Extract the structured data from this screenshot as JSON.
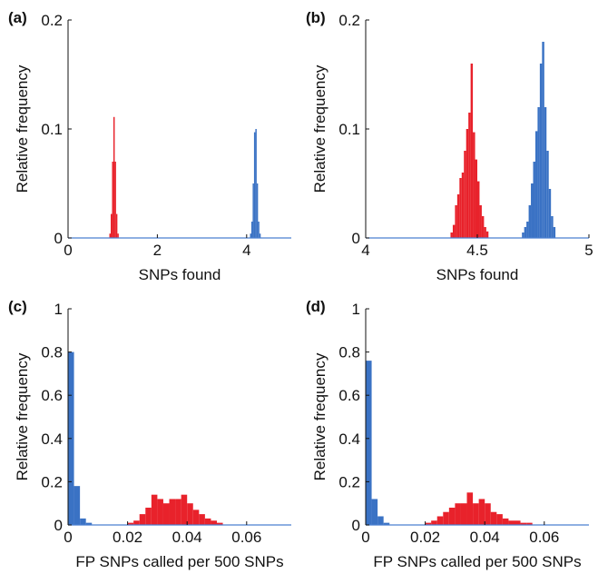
{
  "chart_data": [
    {
      "type": "bar",
      "panel_label": "(a)",
      "xlabel": "SNPs found",
      "ylabel": "Relative frequency",
      "xlim": [
        0,
        5
      ],
      "ylim": [
        0,
        0.2
      ],
      "xticks": [
        0,
        2,
        4
      ],
      "yticks": [
        0,
        0.1,
        0.2
      ],
      "xtick_labels": [
        "0",
        "2",
        "4"
      ],
      "ytick_labels": [
        "0",
        "0.1",
        "0.2"
      ],
      "bin_width": 0.03,
      "series": [
        {
          "color": "#e8222b",
          "x": [
            0.94,
            0.97,
            1.0,
            1.03,
            1.06,
            1.09,
            1.12
          ],
          "values": [
            0.004,
            0.022,
            0.07,
            0.111,
            0.07,
            0.022,
            0.004
          ]
        },
        {
          "color": "#3a72c4",
          "x": [
            4.09,
            4.12,
            4.15,
            4.18,
            4.21,
            4.24,
            4.27,
            4.3
          ],
          "values": [
            0.004,
            0.015,
            0.05,
            0.097,
            0.1,
            0.05,
            0.015,
            0.004
          ]
        }
      ]
    },
    {
      "type": "bar",
      "panel_label": "(b)",
      "xlabel": "SNPs found",
      "ylabel": "Relative frequency",
      "xlim": [
        4,
        5
      ],
      "ylim": [
        0,
        0.2
      ],
      "xticks": [
        4,
        4.5,
        5
      ],
      "yticks": [
        0,
        0.1,
        0.2
      ],
      "xtick_labels": [
        "4",
        "4.5",
        "5"
      ],
      "ytick_labels": [
        "0",
        "0.1",
        "0.2"
      ],
      "bin_width": 0.01,
      "series": [
        {
          "color": "#e8222b",
          "x": [
            4.385,
            4.395,
            4.405,
            4.415,
            4.425,
            4.435,
            4.445,
            4.455,
            4.465,
            4.475,
            4.485,
            4.495,
            4.505,
            4.515,
            4.525,
            4.535,
            4.545
          ],
          "values": [
            0.005,
            0.012,
            0.03,
            0.04,
            0.055,
            0.06,
            0.08,
            0.1,
            0.115,
            0.16,
            0.097,
            0.072,
            0.052,
            0.03,
            0.02,
            0.01,
            0.006
          ]
        },
        {
          "color": "#3a72c4",
          "x": [
            4.705,
            4.715,
            4.725,
            4.735,
            4.745,
            4.755,
            4.765,
            4.775,
            4.785,
            4.795,
            4.805,
            4.815,
            4.825,
            4.835,
            4.845
          ],
          "values": [
            0.005,
            0.01,
            0.015,
            0.03,
            0.05,
            0.07,
            0.098,
            0.12,
            0.16,
            0.18,
            0.12,
            0.08,
            0.045,
            0.02,
            0.01
          ]
        }
      ]
    },
    {
      "type": "bar",
      "panel_label": "(c)",
      "xlabel": "FP SNPs called per 500 SNPs",
      "ylabel": "Relative frequency",
      "xlim": [
        0,
        0.075
      ],
      "ylim": [
        0,
        1
      ],
      "xticks": [
        0,
        0.02,
        0.04,
        0.06
      ],
      "yticks": [
        0,
        0.2,
        0.4,
        0.6,
        0.8,
        1
      ],
      "xtick_labels": [
        "0",
        "0.02",
        "0.04",
        "0.06"
      ],
      "ytick_labels": [
        "0",
        "0.2",
        "0.4",
        "0.6",
        "0.8",
        "1"
      ],
      "bin_width": 0.002,
      "series": [
        {
          "color": "#3a72c4",
          "x": [
            0.001,
            0.003,
            0.005,
            0.007
          ],
          "values": [
            0.8,
            0.18,
            0.03,
            0.01
          ]
        },
        {
          "color": "#e8222b",
          "x": [
            0.021,
            0.023,
            0.025,
            0.027,
            0.029,
            0.031,
            0.033,
            0.035,
            0.037,
            0.039,
            0.041,
            0.043,
            0.045,
            0.047,
            0.049,
            0.051
          ],
          "values": [
            0.01,
            0.02,
            0.05,
            0.08,
            0.14,
            0.12,
            0.1,
            0.12,
            0.12,
            0.14,
            0.1,
            0.07,
            0.05,
            0.03,
            0.02,
            0.01
          ]
        }
      ]
    },
    {
      "type": "bar",
      "panel_label": "(d)",
      "xlabel": "FP SNPs called per 500 SNPs",
      "ylabel": "Relative frequency",
      "xlim": [
        0,
        0.075
      ],
      "ylim": [
        0,
        1
      ],
      "xticks": [
        0,
        0.02,
        0.04,
        0.06
      ],
      "yticks": [
        0,
        0.2,
        0.4,
        0.6,
        0.8,
        1
      ],
      "xtick_labels": [
        "0",
        "0.02",
        "0.04",
        "0.06"
      ],
      "ytick_labels": [
        "0",
        "0.2",
        "0.4",
        "0.6",
        "0.8",
        "1"
      ],
      "bin_width": 0.002,
      "series": [
        {
          "color": "#3a72c4",
          "x": [
            0.001,
            0.003,
            0.005,
            0.007
          ],
          "values": [
            0.76,
            0.12,
            0.04,
            0.01
          ]
        },
        {
          "color": "#e8222b",
          "x": [
            0.021,
            0.023,
            0.025,
            0.027,
            0.029,
            0.031,
            0.033,
            0.035,
            0.037,
            0.039,
            0.041,
            0.043,
            0.045,
            0.047,
            0.049,
            0.051,
            0.053,
            0.055
          ],
          "values": [
            0.01,
            0.02,
            0.04,
            0.06,
            0.08,
            0.1,
            0.1,
            0.15,
            0.1,
            0.12,
            0.1,
            0.06,
            0.05,
            0.03,
            0.02,
            0.02,
            0.01,
            0.01
          ]
        }
      ]
    }
  ]
}
